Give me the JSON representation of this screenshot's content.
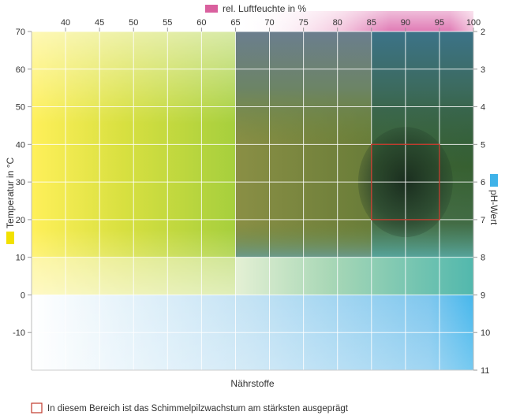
{
  "chart_data": {
    "type": "heatmap",
    "top_axis": {
      "label": "rel. Luftfeuchte in %",
      "ticks": [
        "40",
        "45",
        "50",
        "55",
        "60",
        "65",
        "70",
        "75",
        "80",
        "85",
        "90",
        "95",
        "100"
      ],
      "range": [
        35,
        100
      ],
      "color": "#d9609e"
    },
    "left_axis": {
      "label": "Temperatur in °C",
      "ticks": [
        "70",
        "60",
        "50",
        "40",
        "30",
        "20",
        "10",
        "0",
        "-10"
      ],
      "range": [
        -20,
        70
      ],
      "color": "#f2e100"
    },
    "right_axis": {
      "label": "pH-Wert",
      "ticks": [
        "2",
        "3",
        "4",
        "5",
        "6",
        "7",
        "8",
        "9",
        "10",
        "11"
      ],
      "range": [
        2,
        11
      ],
      "color": "#3fb2e8"
    },
    "bottom_axis": {
      "label": "Nährstoffe"
    },
    "zones": {
      "humidity_high": [
        65,
        100
      ],
      "humidity_peak": [
        85,
        95
      ],
      "temperature_high": [
        0,
        70
      ],
      "temperature_peak": [
        10,
        40
      ],
      "ph_peak": [
        3,
        8
      ],
      "ph_low": [
        2,
        11
      ]
    },
    "highlight": {
      "humidity": [
        85,
        95
      ],
      "temperature": [
        20,
        40
      ],
      "border_color": "#c0392b"
    },
    "grid": true,
    "legend": {
      "text": "In diesem Bereich ist das Schimmelpilzwachstum am stärksten ausgeprägt",
      "border_color": "#c0392b"
    }
  }
}
